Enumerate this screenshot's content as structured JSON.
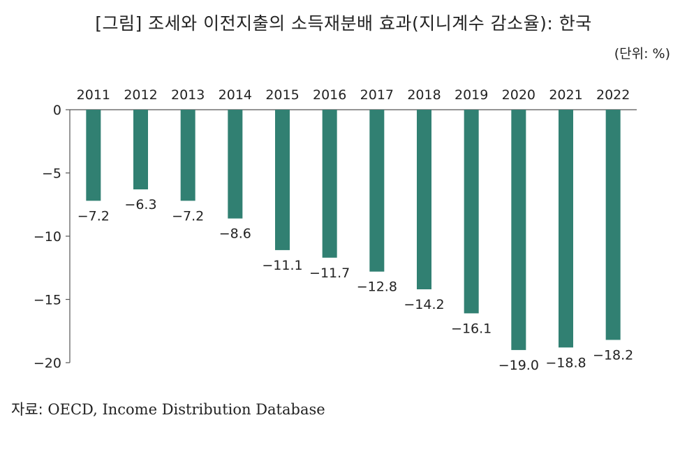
{
  "title": "[그림] 조세와 이전지출의 소득재분배 효과(지니계수 감소율): 한국",
  "unit": "(단위: %)",
  "source": {
    "label": "자료:",
    "text": "OECD, Income Distribution Database"
  },
  "colors": {
    "bar": "#318072",
    "axis": "#555555"
  },
  "chart_data": {
    "type": "bar",
    "title": "[그림] 조세와 이전지출의 소득재분배 효과(지니계수 감소율): 한국",
    "categories": [
      "2011",
      "2012",
      "2013",
      "2014",
      "2015",
      "2016",
      "2017",
      "2018",
      "2019",
      "2020",
      "2021",
      "2022"
    ],
    "values": [
      -7.2,
      -6.3,
      -7.2,
      -8.6,
      -11.1,
      -11.7,
      -12.8,
      -14.2,
      -16.1,
      -19.0,
      -18.8,
      -18.2
    ],
    "data_labels": [
      "−7.2",
      "−6.3",
      "−7.2",
      "−8.6",
      "−11.1",
      "−11.7",
      "−12.8",
      "−14.2",
      "−16.1",
      "−19.0",
      "−18.8",
      "−18.2"
    ],
    "yticks": [
      0,
      -5,
      -10,
      -15,
      -20
    ],
    "ytick_labels": [
      "0",
      "−5",
      "−10",
      "−15",
      "−20"
    ],
    "ylim": [
      -20,
      0
    ],
    "xaxis_position": "top",
    "grid": false,
    "legend": "none"
  }
}
